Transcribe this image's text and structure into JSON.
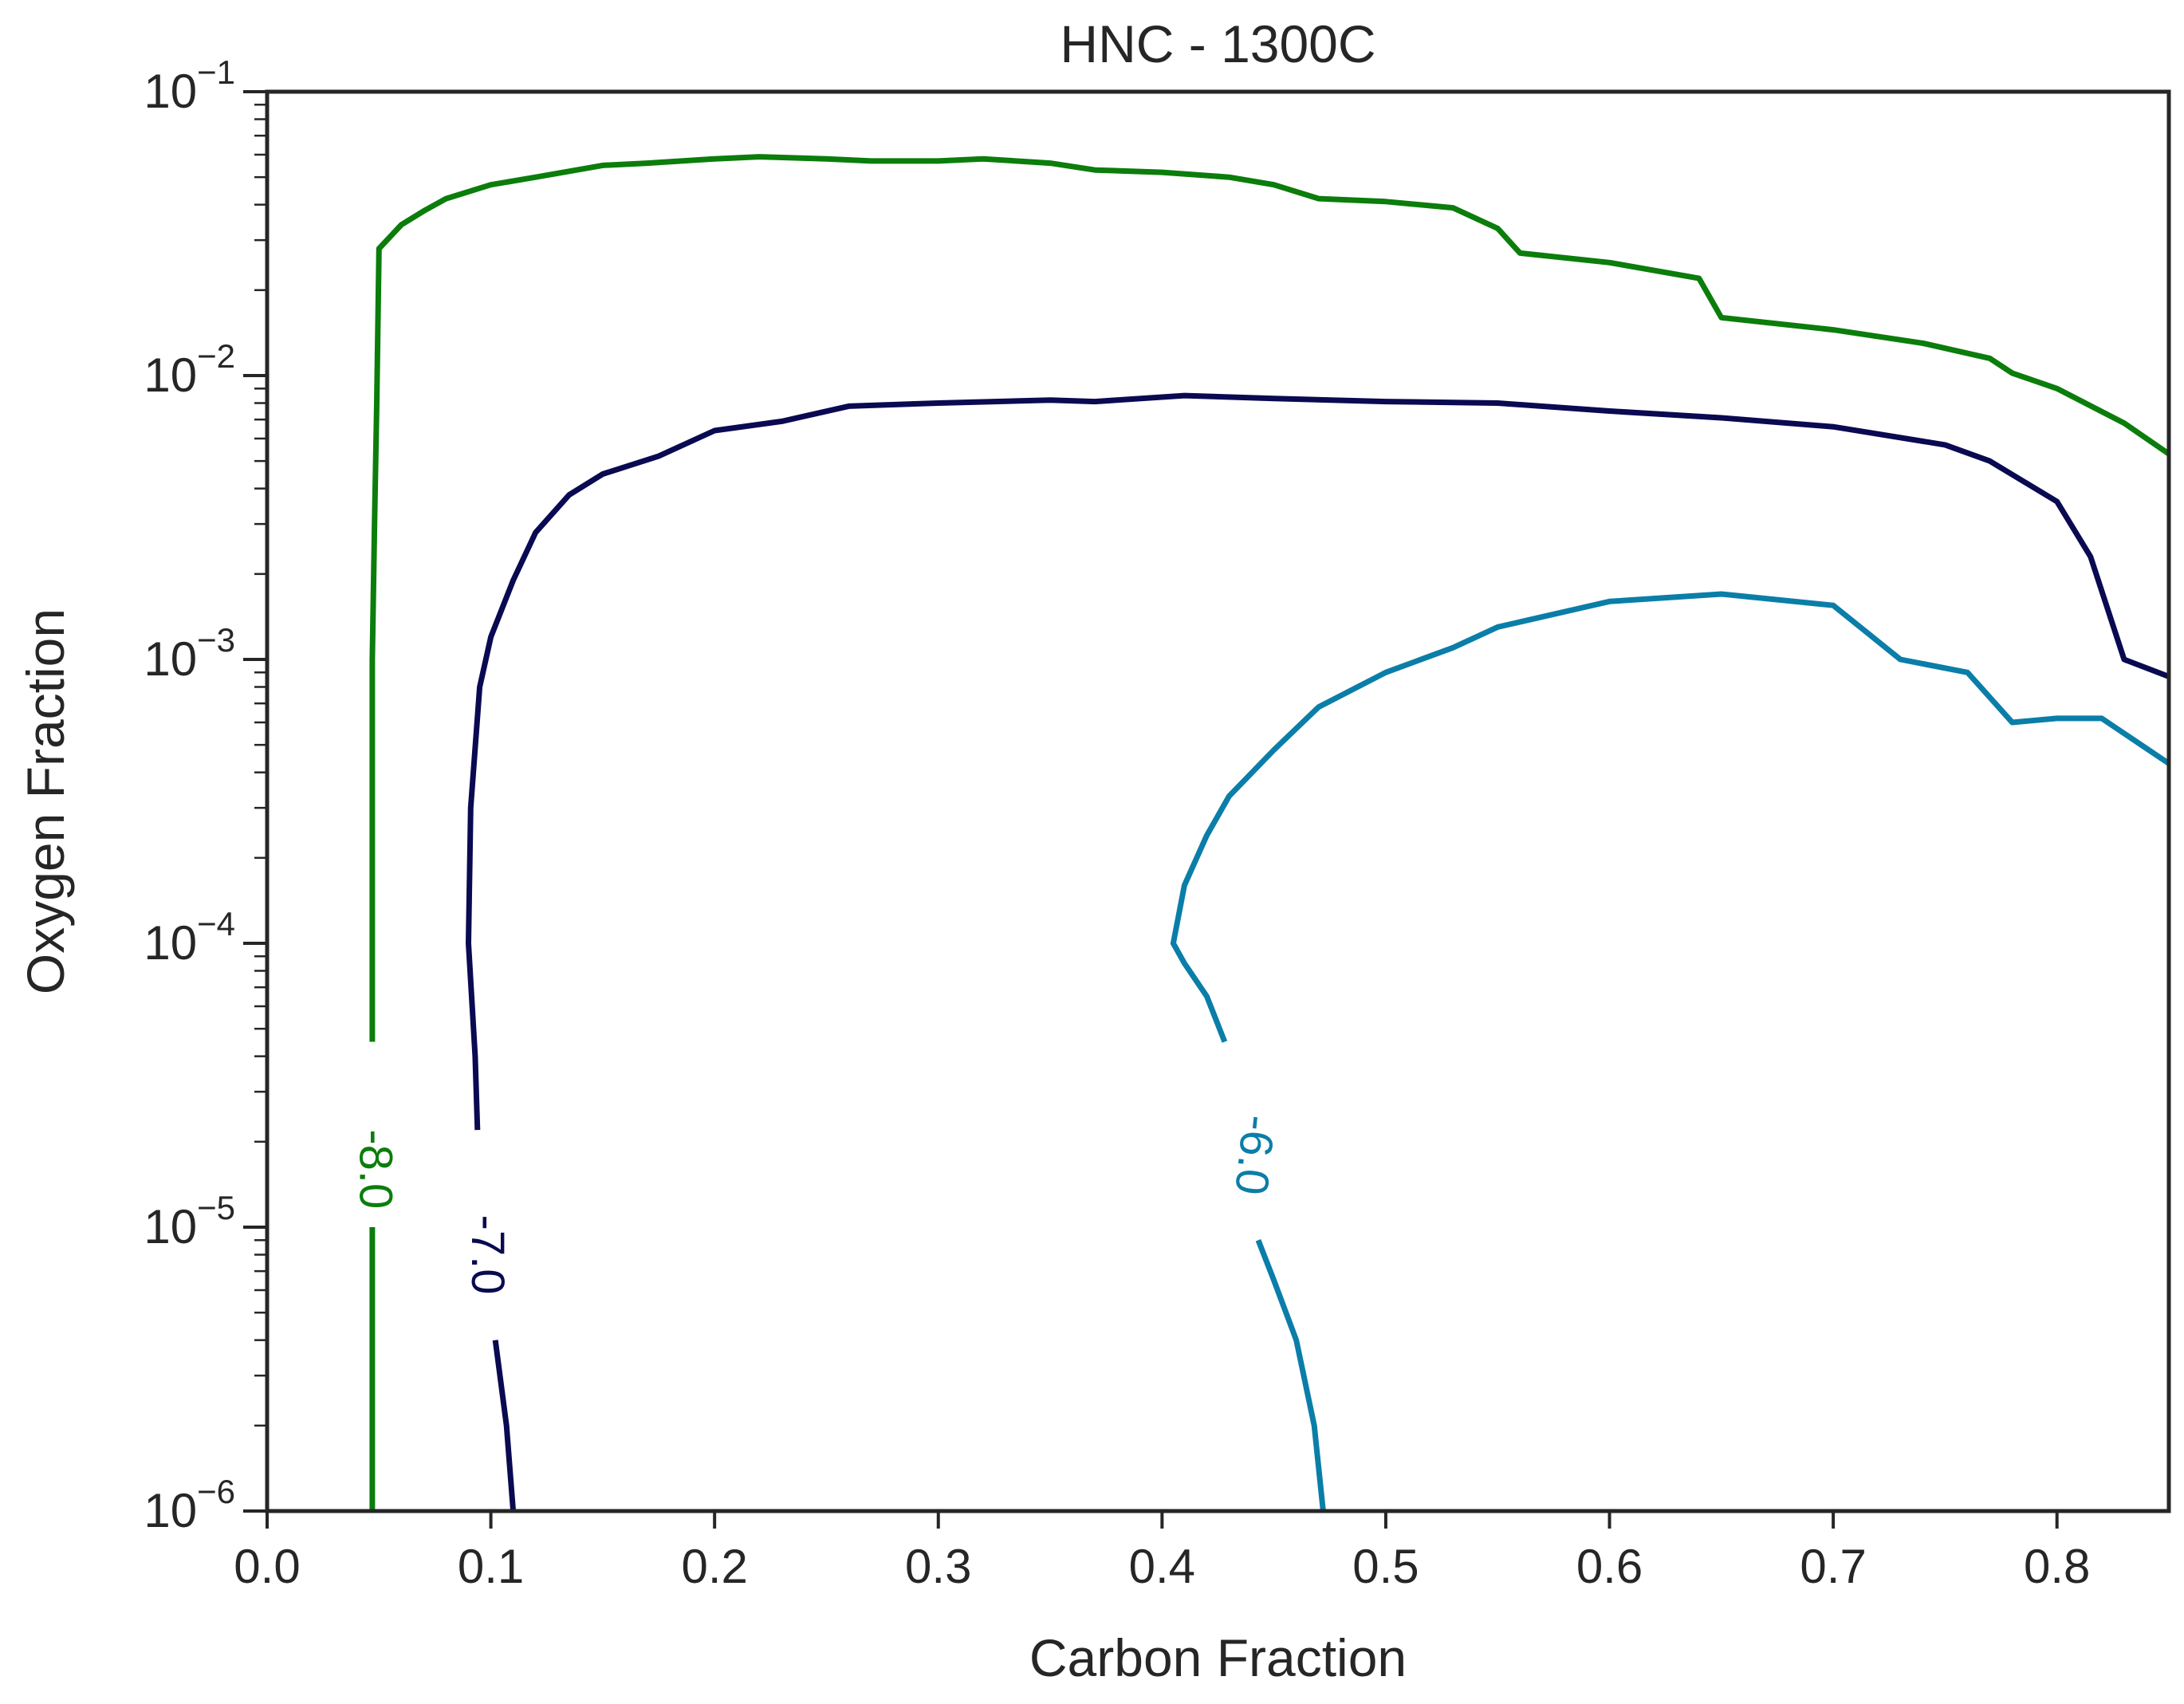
{
  "chart_data": {
    "type": "contour",
    "title": "HNC - 1300C",
    "xlabel": "Carbon Fraction",
    "ylabel": "Oxygen Fraction",
    "xlim": [
      0.0,
      0.85
    ],
    "ylim": [
      1e-06,
      0.1
    ],
    "yscale": "log",
    "grid": false,
    "legend": "none",
    "x_ticks": [
      {
        "value": 0.0,
        "label": "0.0"
      },
      {
        "value": 0.1,
        "label": "0.1"
      },
      {
        "value": 0.2,
        "label": "0.2"
      },
      {
        "value": 0.3,
        "label": "0.3"
      },
      {
        "value": 0.4,
        "label": "0.4"
      },
      {
        "value": 0.5,
        "label": "0.5"
      },
      {
        "value": 0.6,
        "label": "0.6"
      },
      {
        "value": 0.7,
        "label": "0.7"
      },
      {
        "value": 0.8,
        "label": "0.8"
      }
    ],
    "y_ticks": [
      {
        "value": 1e-06,
        "base": "10",
        "exp": "−6"
      },
      {
        "value": 1e-05,
        "base": "10",
        "exp": "−5"
      },
      {
        "value": 0.0001,
        "base": "10",
        "exp": "−4"
      },
      {
        "value": 0.001,
        "base": "10",
        "exp": "−3"
      },
      {
        "value": 0.01,
        "base": "10",
        "exp": "−2"
      },
      {
        "value": 0.1,
        "base": "10",
        "exp": "−1"
      }
    ],
    "series": [
      {
        "level_label": "-8.0",
        "color": "#0b7d0b",
        "label_at": {
          "x": 0.047,
          "y": 1.6e-05
        },
        "segments": [
          [
            [
              0.047,
              1e-06
            ],
            [
              0.047,
              1e-05
            ]
          ],
          [
            [
              0.047,
              4.5e-05
            ],
            [
              0.047,
              0.0003
            ],
            [
              0.047,
              0.001
            ],
            [
              0.048,
              0.003
            ],
            [
              0.049,
              0.008
            ],
            [
              0.05,
              0.028
            ],
            [
              0.06,
              0.034
            ],
            [
              0.07,
              0.038
            ],
            [
              0.08,
              0.042
            ],
            [
              0.1,
              0.047
            ],
            [
              0.12,
              0.05
            ],
            [
              0.15,
              0.055
            ],
            [
              0.17,
              0.056
            ],
            [
              0.2,
              0.058
            ],
            [
              0.22,
              0.059
            ],
            [
              0.25,
              0.058
            ],
            [
              0.27,
              0.057
            ],
            [
              0.3,
              0.057
            ],
            [
              0.32,
              0.058
            ],
            [
              0.35,
              0.056
            ],
            [
              0.37,
              0.053
            ],
            [
              0.4,
              0.052
            ],
            [
              0.43,
              0.05
            ],
            [
              0.45,
              0.047
            ],
            [
              0.47,
              0.042
            ],
            [
              0.5,
              0.041
            ],
            [
              0.53,
              0.039
            ],
            [
              0.55,
              0.033
            ],
            [
              0.56,
              0.027
            ],
            [
              0.6,
              0.025
            ],
            [
              0.64,
              0.022
            ],
            [
              0.65,
              0.016
            ],
            [
              0.7,
              0.0145
            ],
            [
              0.74,
              0.013
            ],
            [
              0.77,
              0.0115
            ],
            [
              0.78,
              0.0102
            ],
            [
              0.8,
              0.009
            ],
            [
              0.83,
              0.0068
            ],
            [
              0.85,
              0.0053
            ]
          ]
        ]
      },
      {
        "level_label": "-7.0",
        "color": "#0a0a52",
        "label_at": {
          "x": 0.097,
          "y": 8e-06
        },
        "segments": [
          [
            [
              0.11,
              1e-06
            ],
            [
              0.107,
              2e-06
            ],
            [
              0.102,
              4e-06
            ]
          ],
          [
            [
              0.094,
              2.2e-05
            ],
            [
              0.093,
              4e-05
            ],
            [
              0.09,
              0.0001
            ],
            [
              0.091,
              0.0003
            ],
            [
              0.095,
              0.0008
            ],
            [
              0.1,
              0.0012
            ],
            [
              0.11,
              0.0019
            ],
            [
              0.12,
              0.0028
            ],
            [
              0.135,
              0.0038
            ],
            [
              0.15,
              0.0045
            ],
            [
              0.175,
              0.0052
            ],
            [
              0.2,
              0.0064
            ],
            [
              0.23,
              0.0069
            ],
            [
              0.26,
              0.0078
            ],
            [
              0.3,
              0.008
            ],
            [
              0.35,
              0.0082
            ],
            [
              0.37,
              0.0081
            ],
            [
              0.41,
              0.0085
            ],
            [
              0.45,
              0.0083
            ],
            [
              0.5,
              0.0081
            ],
            [
              0.55,
              0.008
            ],
            [
              0.6,
              0.0075
            ],
            [
              0.65,
              0.0071
            ],
            [
              0.7,
              0.0066
            ],
            [
              0.75,
              0.0057
            ],
            [
              0.77,
              0.005
            ],
            [
              0.8,
              0.0036
            ],
            [
              0.815,
              0.0023
            ],
            [
              0.83,
              0.001
            ],
            [
              0.85,
              0.00087
            ]
          ]
        ]
      },
      {
        "level_label": "-6.0",
        "color": "#0a7ea8",
        "label_at": {
          "x": 0.44,
          "y": 1.8e-05
        },
        "segments": [
          [
            [
              0.472,
              1e-06
            ],
            [
              0.468,
              2e-06
            ],
            [
              0.46,
              4e-06
            ],
            [
              0.45,
              6.5e-06
            ],
            [
              0.443,
              9e-06
            ]
          ],
          [
            [
              0.428,
              4.5e-05
            ],
            [
              0.42,
              6.5e-05
            ],
            [
              0.41,
              8.5e-05
            ],
            [
              0.405,
              0.0001
            ],
            [
              0.41,
              0.00016
            ],
            [
              0.42,
              0.00024
            ],
            [
              0.43,
              0.00033
            ],
            [
              0.45,
              0.00048
            ],
            [
              0.47,
              0.00068
            ],
            [
              0.5,
              0.0009
            ],
            [
              0.53,
              0.0011
            ],
            [
              0.55,
              0.0013
            ],
            [
              0.6,
              0.0016
            ],
            [
              0.65,
              0.0017
            ],
            [
              0.7,
              0.00155
            ],
            [
              0.73,
              0.001
            ],
            [
              0.76,
              0.0009
            ],
            [
              0.78,
              0.0006
            ],
            [
              0.8,
              0.00062
            ],
            [
              0.82,
              0.00062
            ],
            [
              0.85,
              0.00043
            ]
          ]
        ]
      }
    ]
  }
}
